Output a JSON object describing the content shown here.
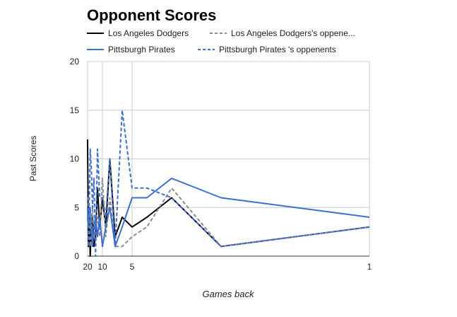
{
  "chart_data": {
    "type": "line",
    "title": "Opponent Scores",
    "xlabel": "Games back",
    "ylabel": "Past Scores",
    "x": [
      20,
      19,
      18,
      17,
      16,
      15,
      14,
      13,
      12,
      11,
      10,
      9,
      8,
      7,
      6,
      5,
      4,
      3,
      2,
      1
    ],
    "xlim": [
      20,
      1
    ],
    "ylim": [
      0,
      20
    ],
    "xticks": [
      20,
      10,
      5,
      1
    ],
    "yticks": [
      0,
      5,
      10,
      15,
      20
    ],
    "x_scale": "reciprocal",
    "grid": true,
    "legend": "top",
    "series": [
      {
        "name": "Los Angeles Dodgers",
        "color": "#000000",
        "dash": "solid",
        "values": [
          12,
          1,
          4,
          0,
          3,
          4,
          1,
          2,
          7,
          3,
          6,
          3,
          10,
          2,
          4,
          3,
          4,
          6,
          1,
          3
        ]
      },
      {
        "name": "Los Angeles Dodgers's oppene...",
        "color": "#8c8c8c",
        "dash": "dashed",
        "values": [
          6,
          6,
          3,
          1,
          2,
          5,
          2,
          3,
          4,
          2,
          8,
          2,
          6,
          1,
          1,
          2,
          3,
          7,
          1,
          3
        ]
      },
      {
        "name": "Pittsburgh Pirates",
        "color": "#3d6fd1",
        "dash": "solid",
        "values": [
          4,
          3,
          5,
          5,
          3,
          1,
          3,
          4,
          2,
          4,
          1,
          3,
          5,
          1,
          3,
          6,
          6,
          8,
          6,
          4
        ]
      },
      {
        "name": "Pittsburgh Pirates 's oppenents",
        "color": "#3d6fd1",
        "dash": "dashed",
        "values": [
          5,
          1,
          5,
          11,
          9,
          5,
          8,
          0,
          11,
          6,
          6,
          4,
          10,
          1,
          15,
          7,
          7,
          6,
          1,
          3
        ]
      }
    ]
  }
}
